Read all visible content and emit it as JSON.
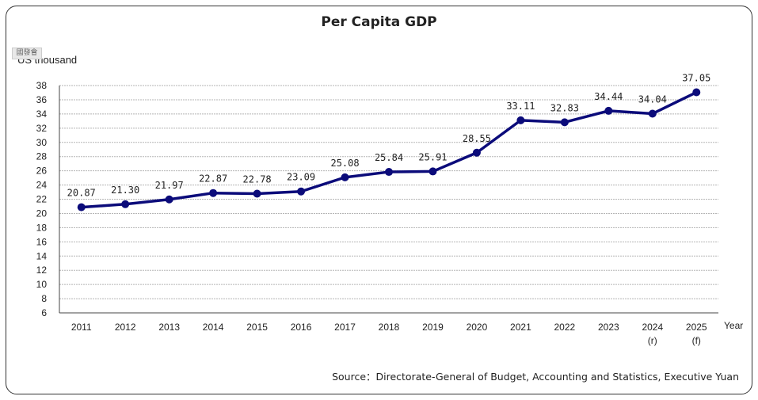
{
  "chart_data": {
    "type": "line",
    "title": "Per Capita GDP",
    "ylabel": "US thousand",
    "xlabel": "Year",
    "categories": [
      "2011",
      "2012",
      "2013",
      "2014",
      "2015",
      "2016",
      "2017",
      "2018",
      "2019",
      "2020",
      "2021",
      "2022",
      "2023",
      "2024",
      "2025"
    ],
    "category_notes": [
      "",
      "",
      "",
      "",
      "",
      "",
      "",
      "",
      "",
      "",
      "",
      "",
      "",
      "(r)",
      "(f)"
    ],
    "series": [
      {
        "name": "Per Capita GDP",
        "values": [
          20.87,
          21.3,
          21.97,
          22.87,
          22.78,
          23.09,
          25.08,
          25.84,
          25.91,
          28.55,
          33.11,
          32.83,
          34.44,
          34.04,
          37.05
        ],
        "labels": [
          "20.87",
          "21.30",
          "21.97",
          "22.87",
          "22.78",
          "23.09",
          "25.08",
          "25.84",
          "25.91",
          "28.55",
          "33.11",
          "32.83",
          "34.44",
          "34.04",
          "37.05"
        ],
        "color": "#0b0b7a"
      }
    ],
    "ylim": [
      6,
      38
    ],
    "yticks": [
      6,
      8,
      10,
      12,
      14,
      16,
      18,
      20,
      22,
      24,
      26,
      28,
      30,
      32,
      34,
      36,
      38
    ],
    "grid": true
  },
  "logo_text": "國發會",
  "source": "Source：Directorate-General of Budget, Accounting and Statistics, Executive Yuan"
}
